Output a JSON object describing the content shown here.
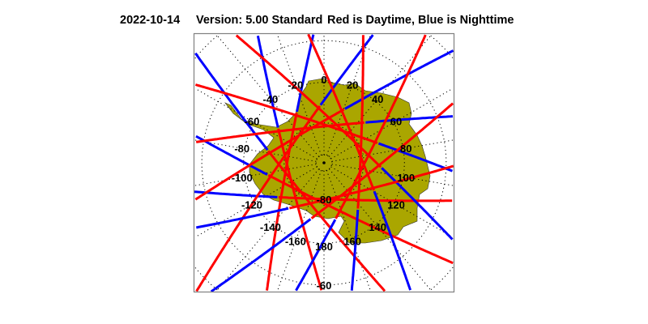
{
  "header": {
    "date": "2022-10-14",
    "version": "Version: 5.00  Standard",
    "legend": "Red is Daytime, Blue is Nighttime"
  },
  "colors": {
    "day": "#ff0000",
    "night": "#0000ff",
    "land": "#aaa600",
    "grid": "#000000",
    "frame": "#808080"
  },
  "map": {
    "projection": "south polar stereographic",
    "lon_labels": [
      "0",
      "20",
      "40",
      "60",
      "80",
      "100",
      "120",
      "140",
      "160",
      "180",
      "-160",
      "-140",
      "-120",
      "-100",
      "-80",
      "-60",
      "-40",
      "-20"
    ],
    "lat_labels": [
      "-80",
      "-60"
    ],
    "tracks": {
      "min_lat": -80.9,
      "tangent_lons": [
        -178,
        -153.4,
        -128.8,
        -104.2,
        -79.6,
        -55,
        -30.4,
        -5.8,
        18.8,
        43.4,
        68,
        92.6,
        117.2,
        141.8,
        166.4
      ],
      "night_starts_along_track_deg": 11.3
    }
  }
}
